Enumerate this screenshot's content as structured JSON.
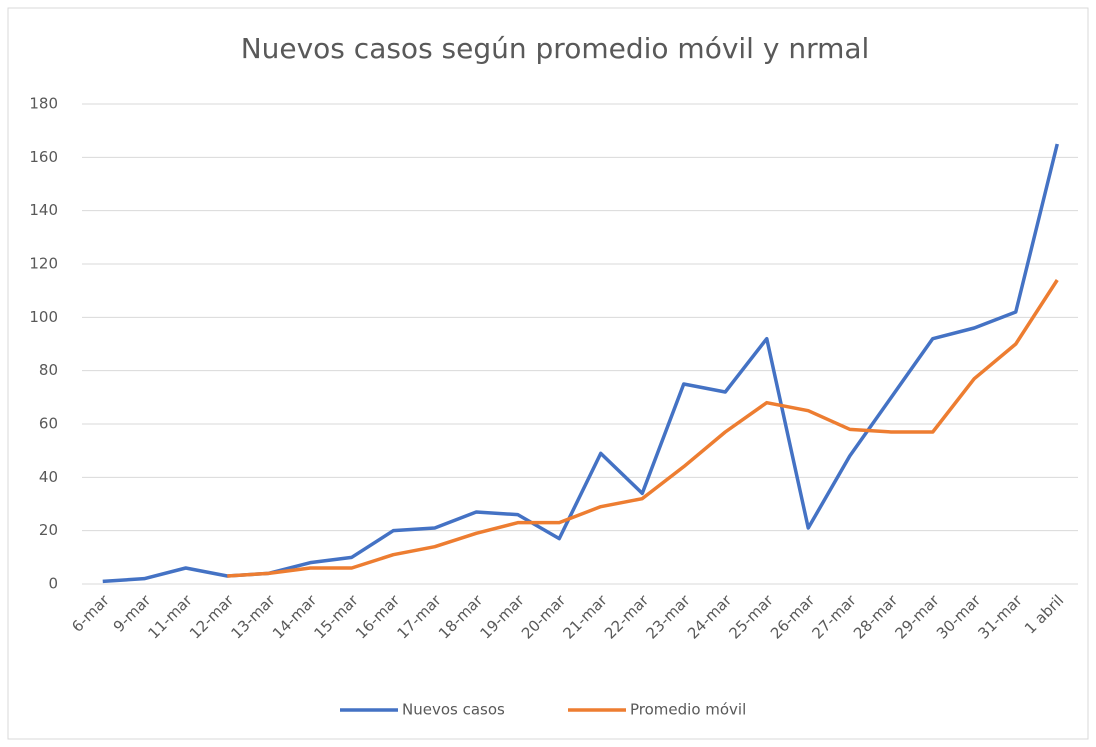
{
  "chart_data": {
    "type": "line",
    "title": "Nuevos casos según promedio móvil y nrmal",
    "categories": [
      "6-mar",
      "9-mar",
      "11-mar",
      "12-mar",
      "13-mar",
      "14-mar",
      "15-mar",
      "16-mar",
      "17-mar",
      "18-mar",
      "19-mar",
      "20-mar",
      "21-mar",
      "22-mar",
      "23-mar",
      "24-mar",
      "25-mar",
      "26-mar",
      "27-mar",
      "28-mar",
      "29-mar",
      "30-mar",
      "31-mar",
      "1 abril"
    ],
    "series": [
      {
        "name": "Nuevos casos",
        "color": "#4472c4",
        "values": [
          1,
          2,
          6,
          3,
          4,
          8,
          10,
          20,
          21,
          27,
          26,
          17,
          49,
          34,
          75,
          72,
          92,
          21,
          48,
          70,
          92,
          96,
          102,
          165
        ]
      },
      {
        "name": "Promedio móvil",
        "color": "#ed7d31",
        "values": [
          null,
          null,
          null,
          3,
          4,
          6,
          6,
          11,
          14,
          19,
          23,
          23,
          29,
          32,
          44,
          57,
          68,
          65,
          58,
          57,
          57,
          77,
          90,
          114
        ]
      }
    ],
    "ylim": [
      0,
      180
    ],
    "yticks": [
      0,
      20,
      40,
      60,
      80,
      100,
      120,
      140,
      160,
      180
    ],
    "grid": true,
    "legend": "bottom"
  }
}
